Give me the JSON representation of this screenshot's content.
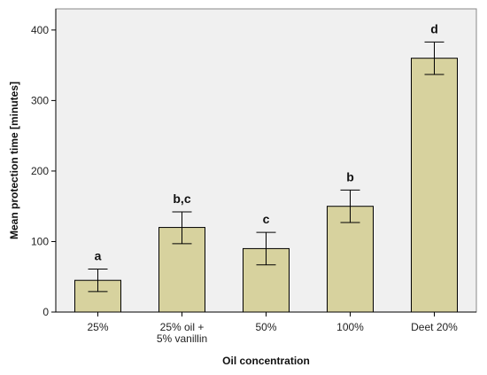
{
  "chart_data": {
    "type": "bar",
    "categories": [
      [
        "25%"
      ],
      [
        "25% oil +",
        "5% vanillin"
      ],
      [
        "50%"
      ],
      [
        "100%"
      ],
      [
        "Deet 20%"
      ]
    ],
    "values": [
      45,
      120,
      90,
      150,
      360
    ],
    "error": [
      [
        29,
        61
      ],
      [
        97,
        142
      ],
      [
        67,
        113
      ],
      [
        127,
        173
      ],
      [
        337,
        383
      ]
    ],
    "significance_labels": [
      "a",
      "b,c",
      "c",
      "b",
      "d"
    ],
    "xlabel": "Oil concentration",
    "ylabel": "Mean protection time [minutes]",
    "ylim": [
      0,
      430
    ],
    "yticks": [
      0,
      100,
      200,
      300,
      400
    ],
    "grid": false,
    "colors": {
      "bar_fill": "#d7d29e",
      "plot_background": "#f0f0f0",
      "axis": "#000000"
    }
  }
}
